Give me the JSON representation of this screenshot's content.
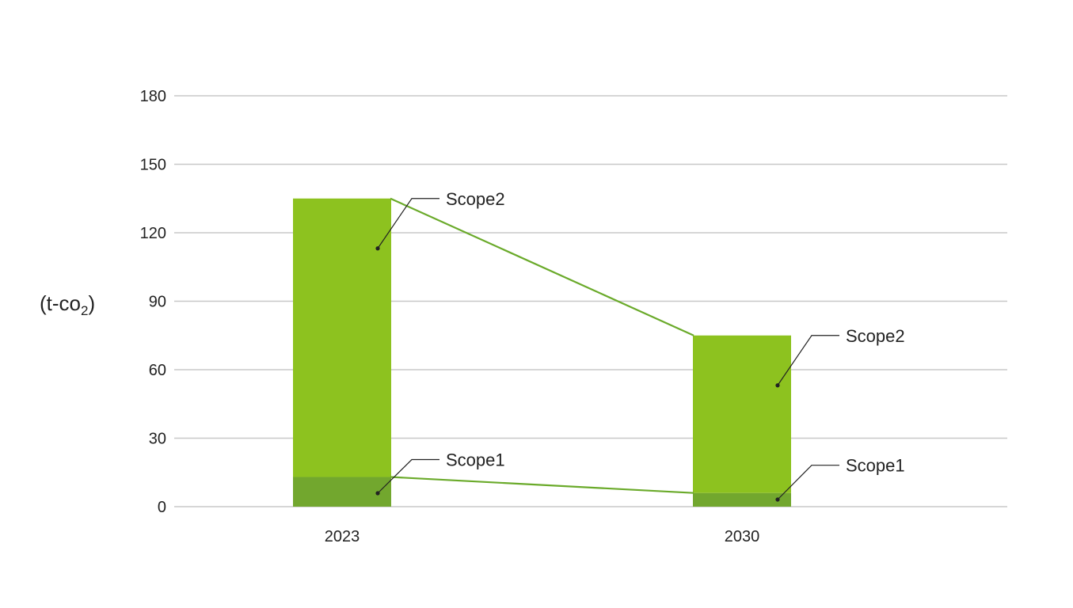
{
  "chart_data": {
    "type": "bar",
    "stacked": true,
    "categories": [
      "2023",
      "2030"
    ],
    "series": [
      {
        "name": "Scope1",
        "values": [
          13,
          6
        ],
        "color": "#72a72e"
      },
      {
        "name": "Scope2",
        "values": [
          122,
          69
        ],
        "color": "#8dc21f"
      }
    ],
    "ylim": [
      0,
      180
    ],
    "yticks": [
      0,
      30,
      60,
      90,
      120,
      150,
      180
    ],
    "ylabel": "(t-co",
    "ylabel_subscript": "2",
    "ylabel_close": ")",
    "grid": true,
    "connector_color": "#6aaa2a",
    "callouts": [
      {
        "category": "2023",
        "series": "Scope2",
        "label": "Scope2"
      },
      {
        "category": "2023",
        "series": "Scope1",
        "label": "Scope1"
      },
      {
        "category": "2030",
        "series": "Scope2",
        "label": "Scope2"
      },
      {
        "category": "2030",
        "series": "Scope1",
        "label": "Scope1"
      }
    ]
  }
}
